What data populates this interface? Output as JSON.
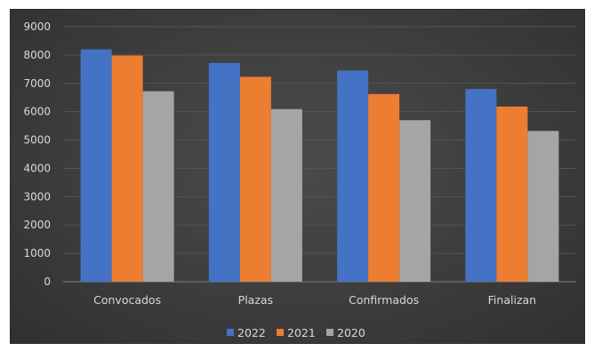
{
  "chart_data": {
    "type": "bar",
    "title": "",
    "xlabel": "",
    "ylabel": "",
    "categories": [
      "Convocados",
      "Plazas",
      "Confirmados",
      "Finalizan"
    ],
    "series": [
      {
        "name": "2022",
        "color": "#4472c4",
        "values": [
          8200,
          7720,
          7450,
          6800
        ]
      },
      {
        "name": "2021",
        "color": "#ed7d31",
        "values": [
          7980,
          7230,
          6620,
          6180
        ]
      },
      {
        "name": "2020",
        "color": "#a5a5a5",
        "values": [
          6720,
          6090,
          5700,
          5320
        ]
      }
    ],
    "ylim": [
      0,
      9000
    ],
    "yticks": [
      "0",
      "1000",
      "2000",
      "3000",
      "4000",
      "5000",
      "6000",
      "7000",
      "8000",
      "9000"
    ],
    "grid": true,
    "legend_position": "bottom"
  }
}
